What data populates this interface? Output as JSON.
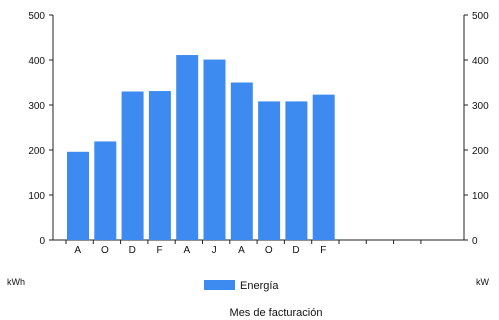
{
  "chart_data": {
    "type": "bar",
    "categories": [
      "A",
      "O",
      "D",
      "F",
      "A",
      "J",
      "A",
      "O",
      "D",
      "F",
      "",
      "",
      "",
      ""
    ],
    "series": [
      {
        "name": "Energía",
        "values": [
          196,
          219,
          330,
          331,
          411,
          401,
          350,
          308,
          308,
          323,
          null,
          null,
          null,
          null
        ],
        "color": "#3d8af0"
      }
    ],
    "title": "",
    "xlabel": "Mes de facturación",
    "ylabel_left": "kWh",
    "ylabel_right": "kW",
    "ylim_left": [
      0,
      500
    ],
    "ylim_right": [
      0,
      500
    ],
    "yticks": [
      0,
      100,
      200,
      300,
      400,
      500
    ],
    "grid": false,
    "legend_position": "bottom"
  }
}
